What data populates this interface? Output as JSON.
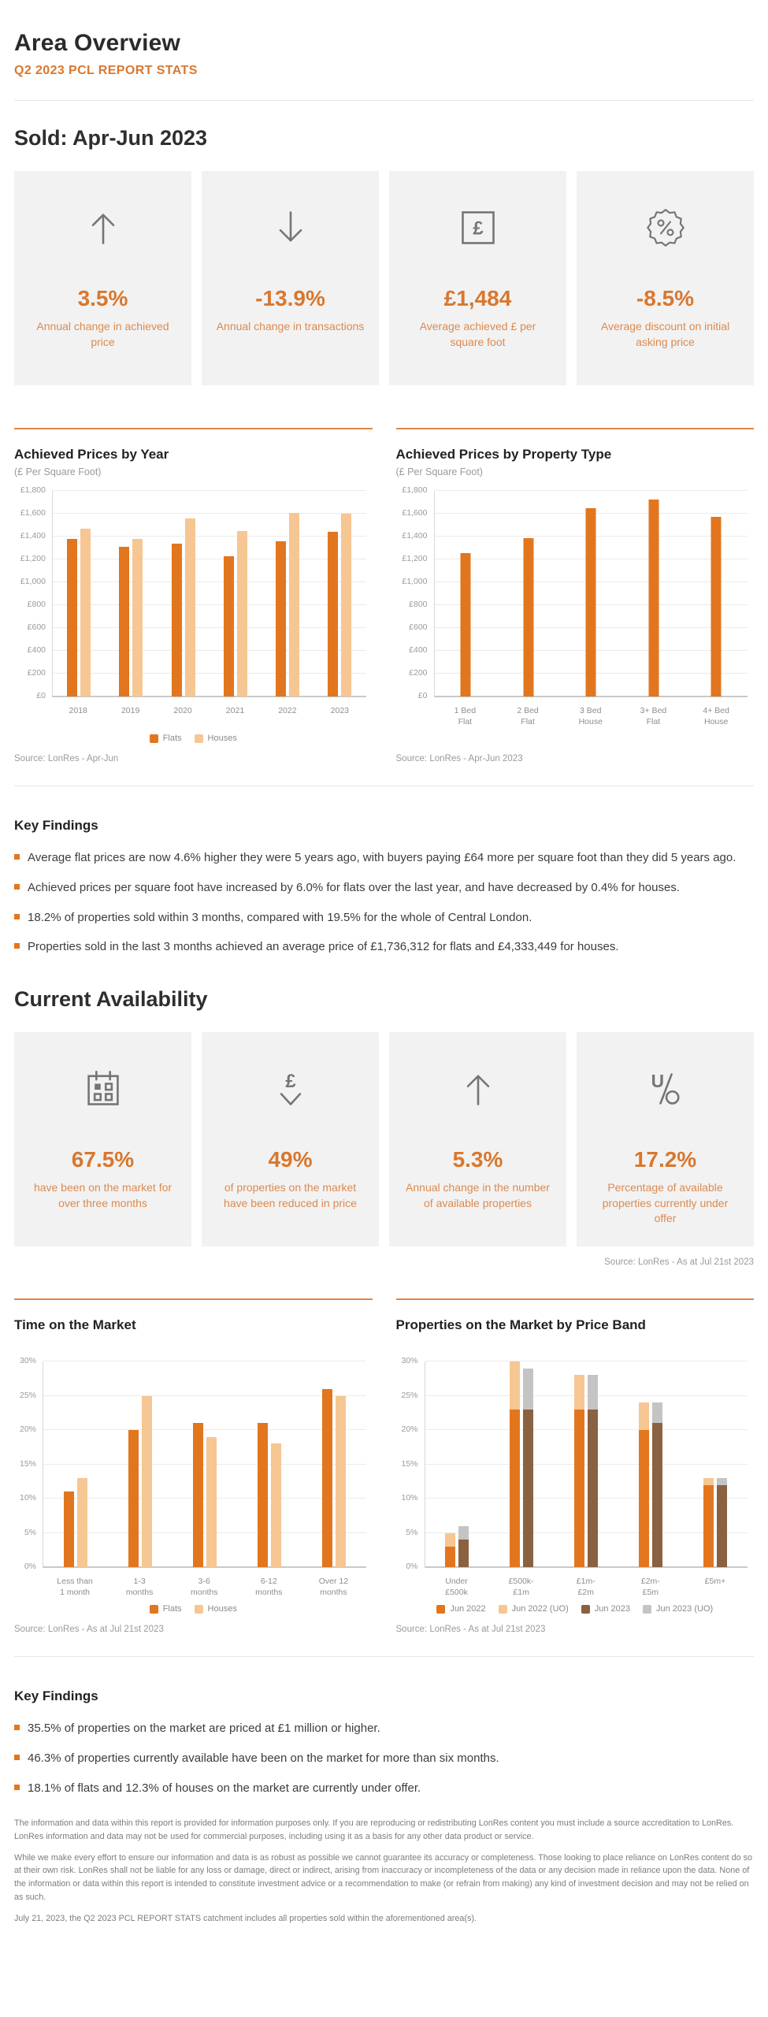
{
  "page": {
    "title": "Area Overview",
    "subtitle": "Q2 2023 PCL REPORT STATS"
  },
  "sold_section": {
    "heading": "Sold: Apr-Jun 2023",
    "cards": [
      {
        "icon": "arrow-up-icon",
        "value": "3.5%",
        "label": "Annual change in achieved price"
      },
      {
        "icon": "arrow-down-icon",
        "value": "-13.9%",
        "label": "Annual change in transactions"
      },
      {
        "icon": "pound-square-icon",
        "value": "£1,484",
        "label": "Average achieved £ per square foot"
      },
      {
        "icon": "percent-badge-icon",
        "value": "-8.5%",
        "label": "Average discount on initial asking price"
      }
    ]
  },
  "key_findings_sold": {
    "heading": "Key Findings",
    "items": [
      "Average flat prices are now 4.6% higher they were 5 years ago, with buyers paying £64 more per square foot than they did 5 years ago.",
      "Achieved prices per square foot have increased by 6.0% for flats over the last year, and have decreased by 0.4% for houses.",
      "18.2% of properties sold within 3 months, compared with 19.5% for the whole of Central London.",
      "Properties sold in the last 3 months achieved an average price of £1,736,312 for flats and £4,333,449 for houses."
    ]
  },
  "availability_section": {
    "heading": "Current Availability",
    "source": "Source: LonRes - As at Jul 21st 2023",
    "cards": [
      {
        "icon": "calendar-icon",
        "value": "67.5%",
        "label": "have been on the market for over three months"
      },
      {
        "icon": "pound-decrease-icon",
        "value": "49%",
        "label": "of properties on the market have been reduced in price"
      },
      {
        "icon": "arrow-up-icon",
        "value": "5.3%",
        "label": "Annual change in the number of available properties"
      },
      {
        "icon": "under-offer-icon",
        "value": "17.2%",
        "label": "Percentage of available properties currently under offer"
      }
    ]
  },
  "key_findings_availability": {
    "heading": "Key Findings",
    "items": [
      "35.5% of properties on the market are priced at £1 million or higher.",
      "46.3% of properties currently available have been on the market for more than six months.",
      "18.1% of flats and 12.3% of houses on the market are currently under offer."
    ]
  },
  "disclaimer": {
    "p1": "The information and data within this report is provided for information purposes only. If you are reproducing or redistributing LonRes content you must include a source accreditation to LonRes. LonRes information and data may not be used for commercial purposes, including using it as a basis for any other data product or service.",
    "p2": "While we make every effort to ensure our information and data is as robust as possible we cannot guarantee its accuracy or completeness. Those looking to place reliance on LonRes content do so at their own risk. LonRes shall not be liable for any loss or damage, direct or indirect, arising from inaccuracy or incompleteness of the data or any decision made in reliance upon the data. None of the information or data within this report is intended to constitute investment advice or a recommendation to make (or refrain from making) any kind of investment decision and may not be relied on as such.",
    "p3": "July 21, 2023, the Q2 2023 PCL REPORT STATS catchment includes all properties sold within the aforementioned area(s)."
  },
  "colors": {
    "accent_orange": "#d9772e",
    "bar_orange": "#e2761f",
    "bar_light_orange": "#f6c693",
    "bar_brown": "#8a6141",
    "bar_gray": "#c4c4c4",
    "card_background": "#f2f2f2"
  },
  "chart_data": [
    {
      "id": "achieved-prices-by-year",
      "type": "bar",
      "title": "Achieved Prices by Year",
      "subtitle": "(£ Per Square Foot)",
      "categories": [
        "2018",
        "2019",
        "2020",
        "2021",
        "2022",
        "2023"
      ],
      "series": [
        {
          "name": "Flats",
          "color": "#e2761f",
          "group": 0,
          "values": [
            1380,
            1310,
            1340,
            1230,
            1360,
            1440
          ]
        },
        {
          "name": "Houses",
          "color": "#f6c693",
          "group": 1,
          "values": [
            1470,
            1380,
            1560,
            1450,
            1610,
            1600
          ]
        }
      ],
      "ylim": [
        0,
        1800
      ],
      "ytick": {
        "step": 200,
        "prefix": "£",
        "suffix": ""
      },
      "grid": true,
      "legend": true,
      "legend_position": "bottom",
      "source": "Source: LonRes - Apr-Jun"
    },
    {
      "id": "achieved-prices-by-property-type",
      "type": "bar",
      "title": "Achieved Prices by Property Type",
      "subtitle": "(£ Per Square Foot)",
      "categories": [
        "1 Bed\nFlat",
        "2 Bed\nFlat",
        "3 Bed\nHouse",
        "3+ Bed\nFlat",
        "4+ Bed\nHouse"
      ],
      "series": [
        {
          "name": "Achieved £ per square foot",
          "color": "#e2761f",
          "group": 0,
          "values": [
            1255,
            1385,
            1650,
            1725,
            1570
          ]
        }
      ],
      "ylim": [
        0,
        1800
      ],
      "ytick": {
        "step": 200,
        "prefix": "£",
        "suffix": ""
      },
      "grid": true,
      "legend": false,
      "source": "Source: LonRes - Apr-Jun 2023"
    },
    {
      "id": "time-on-the-market",
      "type": "bar",
      "title": "Time on the Market",
      "subtitle": "",
      "categories": [
        "Less than\n1 month",
        "1-3\nmonths",
        "3-6\nmonths",
        "6-12\nmonths",
        "Over 12\nmonths"
      ],
      "series": [
        {
          "name": "Flats",
          "color": "#e2761f",
          "group": 0,
          "values": [
            11,
            20,
            21,
            21,
            26
          ]
        },
        {
          "name": "Houses",
          "color": "#f6c693",
          "group": 1,
          "values": [
            13,
            25,
            19,
            18,
            25
          ]
        }
      ],
      "ylim": [
        0,
        30
      ],
      "ytick": {
        "step": 5,
        "prefix": "",
        "suffix": "%"
      },
      "grid": true,
      "legend": true,
      "legend_position": "bottom",
      "source": "Source: LonRes - As at Jul 21st 2023"
    },
    {
      "id": "properties-on-the-market-by-price-band",
      "type": "stacked-bar",
      "title": "Properties on the Market by Price Band",
      "subtitle": "",
      "categories": [
        "Under\n£500k",
        "£500k-\n£1m",
        "£1m-\n£2m",
        "£2m-\n£5m",
        "£5m+"
      ],
      "series": [
        {
          "name": "Jun 2022",
          "color": "#e2761f",
          "group": 0,
          "values": [
            3,
            23,
            23,
            20,
            12
          ]
        },
        {
          "name": "Jun 2022 (UO)",
          "color": "#f6c693",
          "group": 0,
          "values": [
            2,
            7,
            5,
            4,
            1
          ]
        },
        {
          "name": "Jun 2023",
          "color": "#8a6141",
          "group": 1,
          "values": [
            4,
            23,
            23,
            21,
            12
          ]
        },
        {
          "name": "Jun 2023 (UO)",
          "color": "#c4c4c4",
          "group": 1,
          "values": [
            2,
            6,
            5,
            3,
            1
          ]
        }
      ],
      "ylim": [
        0,
        30
      ],
      "ytick": {
        "step": 5,
        "prefix": "",
        "suffix": "%"
      },
      "grid": true,
      "legend": true,
      "legend_position": "bottom",
      "source": "Source: LonRes - As at Jul 21st 2023"
    }
  ]
}
